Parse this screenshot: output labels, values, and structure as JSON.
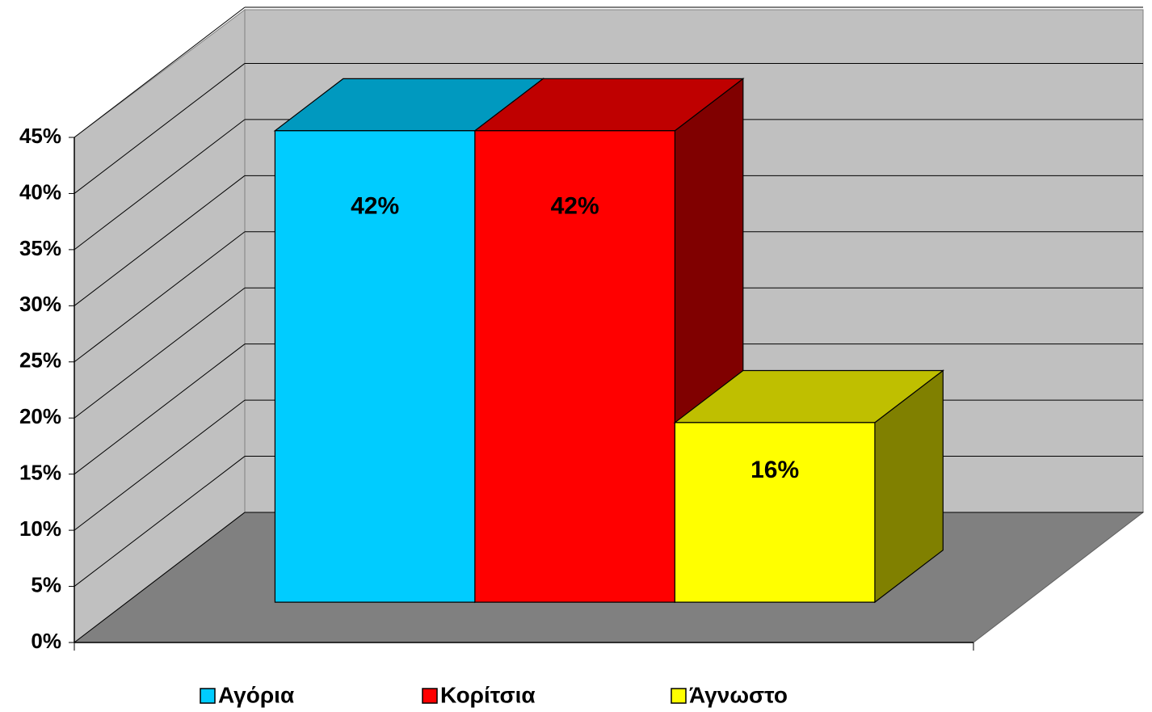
{
  "chart_data": {
    "type": "bar3d",
    "categories": [
      null
    ],
    "series": [
      {
        "name": "Αγόρια",
        "color": "#00ccff",
        "values": [
          42
        ],
        "value_labels": [
          "42%"
        ]
      },
      {
        "name": "Κορίτσια",
        "color": "#ff0000",
        "values": [
          42
        ],
        "value_labels": [
          "42%"
        ]
      },
      {
        "name": "Άγνωστο",
        "color": "#ffff00",
        "values": [
          16
        ],
        "value_labels": [
          "16%"
        ]
      }
    ],
    "ylim": [
      0,
      45
    ],
    "yticks": [
      {
        "value": 0,
        "label": "0%"
      },
      {
        "value": 5,
        "label": "5%"
      },
      {
        "value": 10,
        "label": "10%"
      },
      {
        "value": 15,
        "label": "15%"
      },
      {
        "value": 20,
        "label": "20%"
      },
      {
        "value": 25,
        "label": "25%"
      },
      {
        "value": 30,
        "label": "30%"
      },
      {
        "value": 35,
        "label": "35%"
      },
      {
        "value": 40,
        "label": "40%"
      },
      {
        "value": 45,
        "label": "45%"
      }
    ],
    "grid": true,
    "legend": "bottom"
  }
}
